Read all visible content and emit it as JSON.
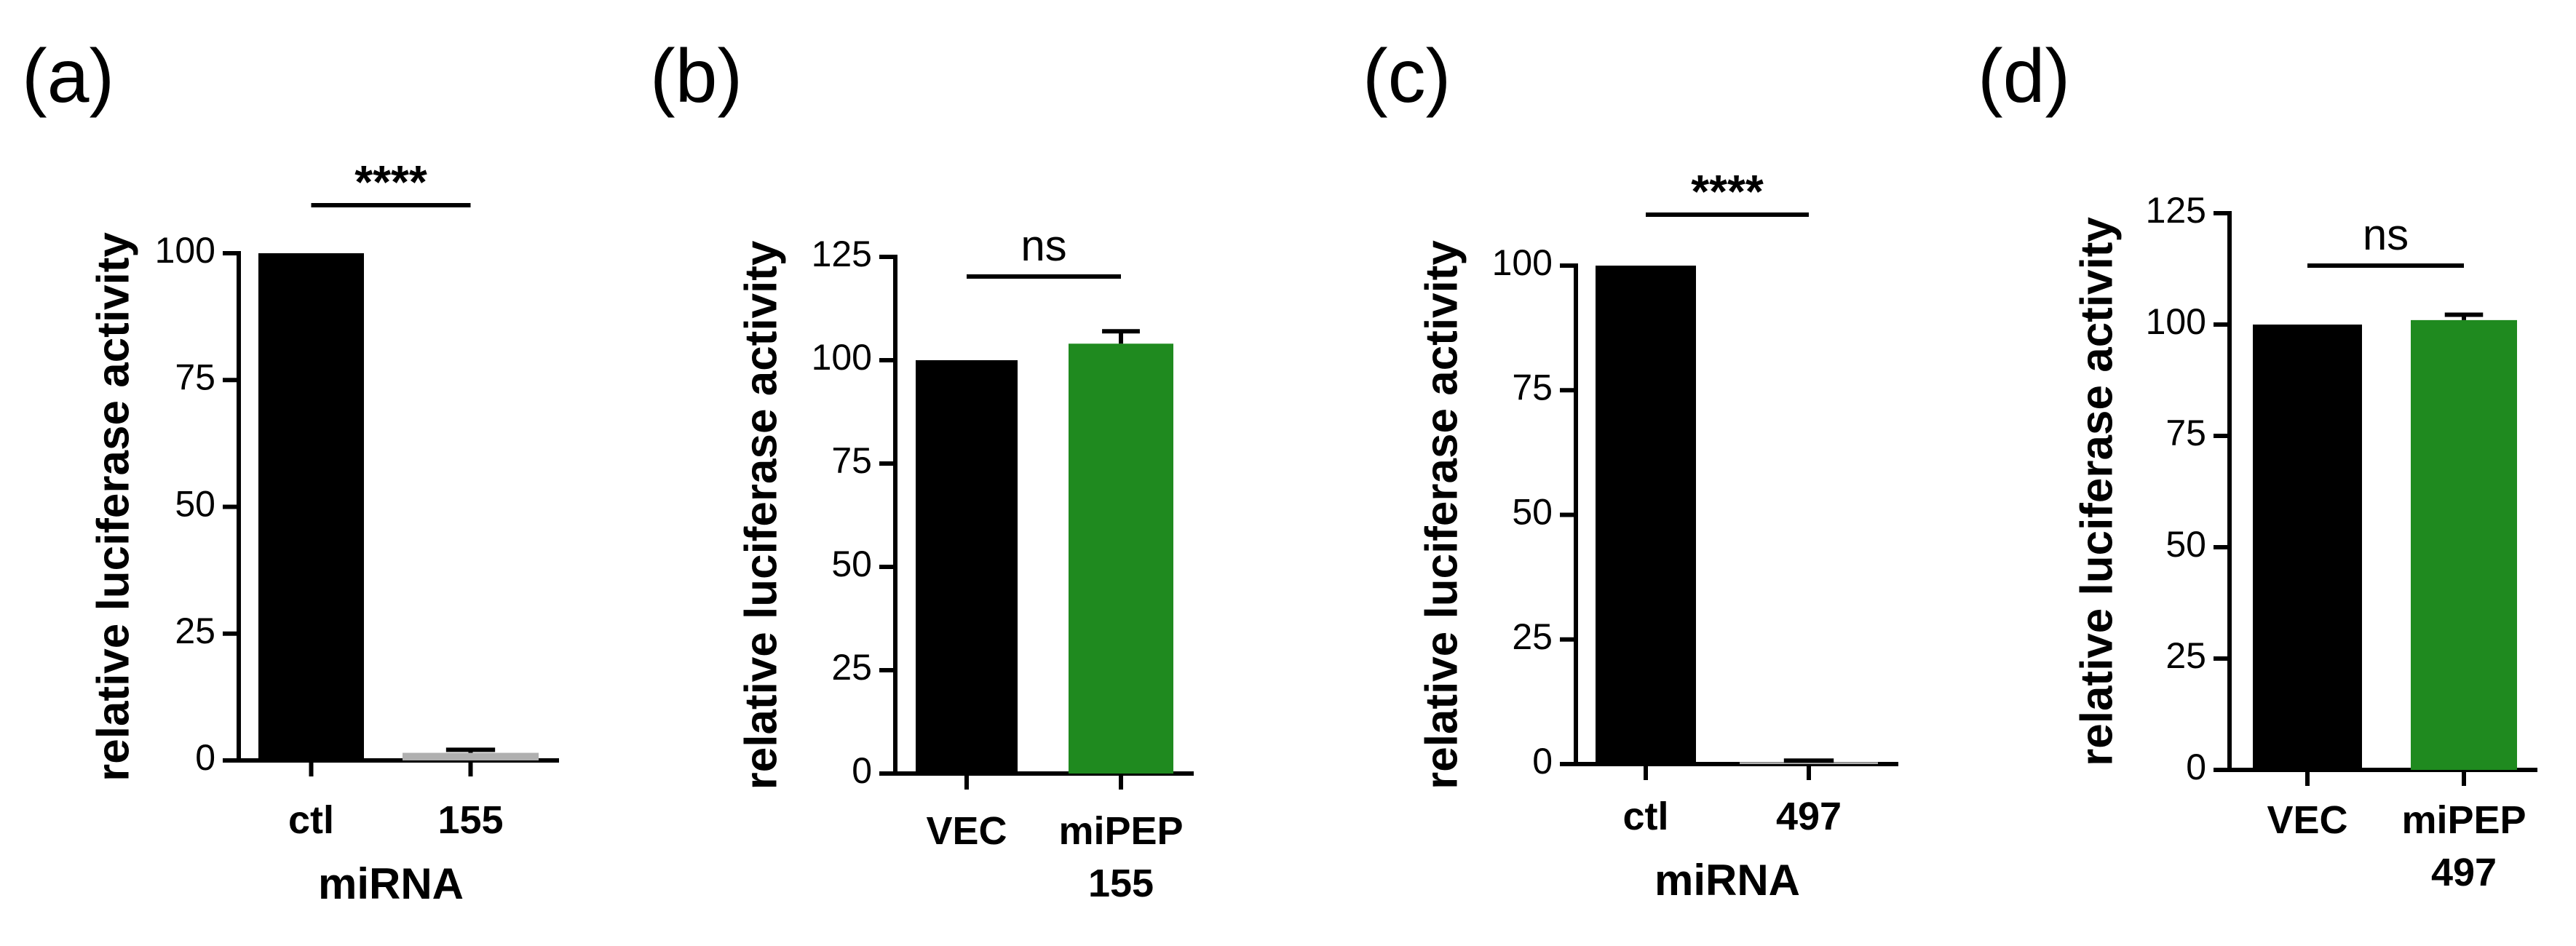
{
  "figure": {
    "background": "#ffffff",
    "ink_color": "#000000"
  },
  "chart_data": [
    {
      "type": "bar",
      "panel_label": "(a)",
      "ylabel": "relative luciferase activity",
      "xlabel": "miRNA",
      "ylim": [
        0,
        100
      ],
      "yticks": [
        0,
        25,
        50,
        75,
        100
      ],
      "categories": [
        [
          "ctl"
        ],
        [
          "155"
        ]
      ],
      "values": [
        100,
        1.5
      ],
      "errors": [
        0,
        0.6
      ],
      "colors": [
        "#000000",
        "#b0b0b0"
      ],
      "significance": {
        "label": "****",
        "between": [
          0,
          1
        ]
      }
    },
    {
      "type": "bar",
      "panel_label": "(b)",
      "ylabel": "relative luciferase activity",
      "xlabel": "",
      "ylim": [
        0,
        125
      ],
      "yticks": [
        0,
        25,
        50,
        75,
        100,
        125
      ],
      "categories": [
        [
          "VEC"
        ],
        [
          "miPEP",
          "155"
        ]
      ],
      "values": [
        100,
        104
      ],
      "errors": [
        0,
        3
      ],
      "colors": [
        "#000000",
        "#1f8a1f"
      ],
      "significance": {
        "label": "ns",
        "between": [
          0,
          1
        ]
      }
    },
    {
      "type": "bar",
      "panel_label": "(c)",
      "ylabel": "relative luciferase activity",
      "xlabel": "miRNA",
      "ylim": [
        0,
        100
      ],
      "yticks": [
        0,
        25,
        50,
        75,
        100
      ],
      "categories": [
        [
          "ctl"
        ],
        [
          "497"
        ]
      ],
      "values": [
        100,
        0.4
      ],
      "errors": [
        0,
        0.3
      ],
      "colors": [
        "#000000",
        "#b0b0b0"
      ],
      "significance": {
        "label": "****",
        "between": [
          0,
          1
        ]
      }
    },
    {
      "type": "bar",
      "panel_label": "(d)",
      "ylabel": "relative luciferase activity",
      "xlabel": "",
      "ylim": [
        0,
        125
      ],
      "yticks": [
        0,
        25,
        50,
        75,
        100,
        125
      ],
      "categories": [
        [
          "VEC"
        ],
        [
          "miPEP",
          "497"
        ]
      ],
      "values": [
        100,
        101
      ],
      "errors": [
        0,
        1.2
      ],
      "colors": [
        "#000000",
        "#1f8a1f"
      ],
      "significance": {
        "label": "ns",
        "between": [
          0,
          1
        ]
      }
    }
  ]
}
